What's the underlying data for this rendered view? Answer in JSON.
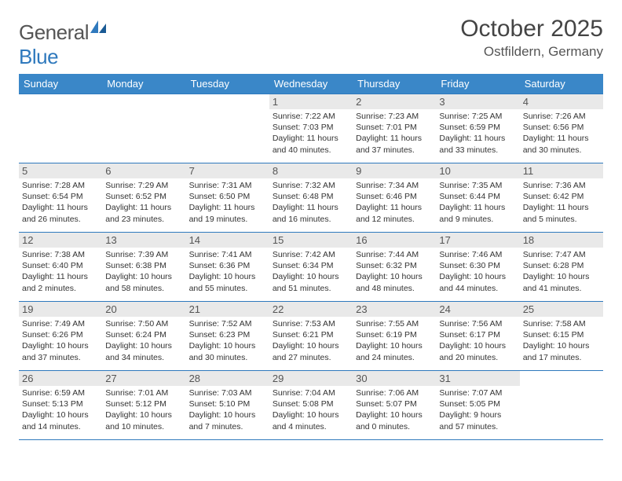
{
  "brand": {
    "g": "General",
    "b": "Blue"
  },
  "title": "October 2025",
  "location": "Ostfildern, Germany",
  "colors": {
    "header_bg": "#3a87c8",
    "header_fg": "#ffffff",
    "border": "#2f79bd",
    "daynum_bg": "#e9e9e9",
    "text": "#333333"
  },
  "dow": [
    "Sunday",
    "Monday",
    "Tuesday",
    "Wednesday",
    "Thursday",
    "Friday",
    "Saturday"
  ],
  "weeks": [
    [
      {
        "n": "",
        "empty": true
      },
      {
        "n": "",
        "empty": true
      },
      {
        "n": "",
        "empty": true
      },
      {
        "n": "1",
        "sr": "7:22 AM",
        "ss": "7:03 PM",
        "dl": "11 hours and 40 minutes."
      },
      {
        "n": "2",
        "sr": "7:23 AM",
        "ss": "7:01 PM",
        "dl": "11 hours and 37 minutes."
      },
      {
        "n": "3",
        "sr": "7:25 AM",
        "ss": "6:59 PM",
        "dl": "11 hours and 33 minutes."
      },
      {
        "n": "4",
        "sr": "7:26 AM",
        "ss": "6:56 PM",
        "dl": "11 hours and 30 minutes."
      }
    ],
    [
      {
        "n": "5",
        "sr": "7:28 AM",
        "ss": "6:54 PM",
        "dl": "11 hours and 26 minutes."
      },
      {
        "n": "6",
        "sr": "7:29 AM",
        "ss": "6:52 PM",
        "dl": "11 hours and 23 minutes."
      },
      {
        "n": "7",
        "sr": "7:31 AM",
        "ss": "6:50 PM",
        "dl": "11 hours and 19 minutes."
      },
      {
        "n": "8",
        "sr": "7:32 AM",
        "ss": "6:48 PM",
        "dl": "11 hours and 16 minutes."
      },
      {
        "n": "9",
        "sr": "7:34 AM",
        "ss": "6:46 PM",
        "dl": "11 hours and 12 minutes."
      },
      {
        "n": "10",
        "sr": "7:35 AM",
        "ss": "6:44 PM",
        "dl": "11 hours and 9 minutes."
      },
      {
        "n": "11",
        "sr": "7:36 AM",
        "ss": "6:42 PM",
        "dl": "11 hours and 5 minutes."
      }
    ],
    [
      {
        "n": "12",
        "sr": "7:38 AM",
        "ss": "6:40 PM",
        "dl": "11 hours and 2 minutes."
      },
      {
        "n": "13",
        "sr": "7:39 AM",
        "ss": "6:38 PM",
        "dl": "10 hours and 58 minutes."
      },
      {
        "n": "14",
        "sr": "7:41 AM",
        "ss": "6:36 PM",
        "dl": "10 hours and 55 minutes."
      },
      {
        "n": "15",
        "sr": "7:42 AM",
        "ss": "6:34 PM",
        "dl": "10 hours and 51 minutes."
      },
      {
        "n": "16",
        "sr": "7:44 AM",
        "ss": "6:32 PM",
        "dl": "10 hours and 48 minutes."
      },
      {
        "n": "17",
        "sr": "7:46 AM",
        "ss": "6:30 PM",
        "dl": "10 hours and 44 minutes."
      },
      {
        "n": "18",
        "sr": "7:47 AM",
        "ss": "6:28 PM",
        "dl": "10 hours and 41 minutes."
      }
    ],
    [
      {
        "n": "19",
        "sr": "7:49 AM",
        "ss": "6:26 PM",
        "dl": "10 hours and 37 minutes."
      },
      {
        "n": "20",
        "sr": "7:50 AM",
        "ss": "6:24 PM",
        "dl": "10 hours and 34 minutes."
      },
      {
        "n": "21",
        "sr": "7:52 AM",
        "ss": "6:23 PM",
        "dl": "10 hours and 30 minutes."
      },
      {
        "n": "22",
        "sr": "7:53 AM",
        "ss": "6:21 PM",
        "dl": "10 hours and 27 minutes."
      },
      {
        "n": "23",
        "sr": "7:55 AM",
        "ss": "6:19 PM",
        "dl": "10 hours and 24 minutes."
      },
      {
        "n": "24",
        "sr": "7:56 AM",
        "ss": "6:17 PM",
        "dl": "10 hours and 20 minutes."
      },
      {
        "n": "25",
        "sr": "7:58 AM",
        "ss": "6:15 PM",
        "dl": "10 hours and 17 minutes."
      }
    ],
    [
      {
        "n": "26",
        "sr": "6:59 AM",
        "ss": "5:13 PM",
        "dl": "10 hours and 14 minutes."
      },
      {
        "n": "27",
        "sr": "7:01 AM",
        "ss": "5:12 PM",
        "dl": "10 hours and 10 minutes."
      },
      {
        "n": "28",
        "sr": "7:03 AM",
        "ss": "5:10 PM",
        "dl": "10 hours and 7 minutes."
      },
      {
        "n": "29",
        "sr": "7:04 AM",
        "ss": "5:08 PM",
        "dl": "10 hours and 4 minutes."
      },
      {
        "n": "30",
        "sr": "7:06 AM",
        "ss": "5:07 PM",
        "dl": "10 hours and 0 minutes."
      },
      {
        "n": "31",
        "sr": "7:07 AM",
        "ss": "5:05 PM",
        "dl": "9 hours and 57 minutes."
      },
      {
        "n": "",
        "empty": true
      }
    ]
  ],
  "labels": {
    "sunrise": "Sunrise: ",
    "sunset": "Sunset: ",
    "daylight": "Daylight: "
  }
}
